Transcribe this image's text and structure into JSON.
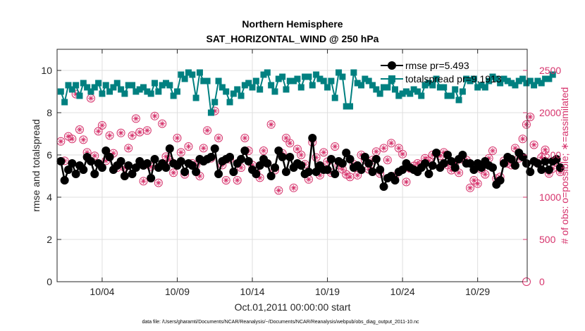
{
  "chart_data": {
    "type": "line",
    "title": "Northern Hemisphere",
    "subtitle": "SAT_HORIZONTAL_WIND @ 250 hPa",
    "xlabel": "Oct.01,2011 00:00:00 start",
    "ylabel_left": "rmse and totalspread",
    "ylabel_right": "# of obs: o=possible; ∗=assimilated",
    "footer": "data file: /Users/gharamti/Documents/NCAR/Reanalysis/~/Documents/NCAR/Reanalysis/webpub/obs_diag_output_2011-10.nc",
    "xlim": [
      1.0,
      32.3
    ],
    "x_ticks": [
      {
        "x": 4,
        "label": "10/04"
      },
      {
        "x": 9,
        "label": "10/09"
      },
      {
        "x": 14,
        "label": "10/14"
      },
      {
        "x": 19,
        "label": "10/19"
      },
      {
        "x": 24,
        "label": "10/24"
      },
      {
        "x": 29,
        "label": "10/29"
      }
    ],
    "ylim_left": [
      0,
      11
    ],
    "yticks_left": [
      0,
      2,
      4,
      6,
      8,
      10
    ],
    "ylim_right": [
      0,
      2750
    ],
    "yticks_right": [
      0,
      500,
      1000,
      1500,
      2000,
      2500
    ],
    "colors": {
      "rmse": "#000000",
      "totalspread": "#008080",
      "obs": "#d6336c"
    },
    "legend": {
      "position": "top-right",
      "entries": [
        "rmse pr=5.493",
        "totalspread pr=9.1913"
      ]
    },
    "series": [
      {
        "name": "rmse",
        "values": [
          5.7,
          4.8,
          5.3,
          5.6,
          5.1,
          5.5,
          5.3,
          5.9,
          5.7,
          5.1,
          5.6,
          5.4,
          6.2,
          5.9,
          5.3,
          5.5,
          5.7,
          5.0,
          5.5,
          5.1,
          5.4,
          5.7,
          5.5,
          5.6,
          4.9,
          5.8,
          5.4,
          5.6,
          5.4,
          6.3,
          5.6,
          5.5,
          5.7,
          5.2,
          5.6,
          5.5,
          5.2,
          5.8,
          5.7,
          5.8,
          5.9,
          6.3,
          5.1,
          5.7,
          5.8,
          5.9,
          5.2,
          5.6,
          5.8,
          6.2,
          5.7,
          5.3,
          5.1,
          5.5,
          5.8,
          5.6,
          5.0,
          5.4,
          6.2,
          5.9,
          5.2,
          5.9,
          5.4,
          5.6,
          5.5,
          5.1,
          5.2,
          6.8,
          5.2,
          5.5,
          5.3,
          5.3,
          5.8,
          5.1,
          5.7,
          5.6,
          6.1,
          5.8,
          5.4,
          5.5,
          5.3,
          5.9,
          5.6,
          5.2,
          5.8,
          5.3,
          4.5,
          4.9,
          5.0,
          4.8,
          5.2,
          5.3,
          5.6,
          5.4,
          5.3,
          5.2,
          5.4,
          5.6,
          5.1,
          5.5,
          6.1,
          5.4,
          5.6,
          6.0,
          5.7,
          5.4,
          5.8,
          6.0,
          5.6,
          5.6,
          5.3,
          5.6,
          5.4,
          5.7,
          5.5,
          5.4,
          4.6,
          4.8,
          5.6,
          5.9,
          5.8,
          5.5,
          6.1,
          5.9,
          5.6,
          5.2,
          5.7,
          5.6,
          5.3,
          5.7,
          5.3,
          5.7,
          5.8,
          5.4
        ]
      },
      {
        "name": "totalspread",
        "values": [
          9.0,
          8.5,
          9.3,
          9.1,
          9.3,
          8.8,
          9.4,
          9.2,
          9.0,
          9.2,
          9.4,
          8.9,
          9.3,
          9.0,
          9.2,
          9.4,
          9.1,
          8.9,
          9.3,
          9.3,
          9.0,
          9.1,
          9.2,
          9.0,
          8.9,
          9.4,
          9.0,
          9.3,
          9.4,
          9.3,
          8.8,
          9.0,
          9.8,
          9.6,
          9.9,
          9.8,
          8.7,
          9.9,
          9.5,
          9.5,
          8.0,
          8.5,
          9.5,
          9.2,
          9.0,
          8.5,
          8.9,
          9.1,
          8.8,
          9.3,
          9.4,
          9.2,
          9.5,
          9.1,
          9.8,
          9.9,
          9.3,
          9.0,
          9.6,
          9.7,
          9.1,
          9.5,
          9.5,
          9.6,
          9.2,
          9.7,
          9.7,
          9.3,
          9.8,
          9.6,
          9.5,
          9.2,
          9.5,
          8.7,
          9.9,
          9.7,
          8.3,
          8.3,
          9.9,
          9.4,
          9.3,
          9.6,
          9.5,
          9.3,
          9.1,
          8.9,
          9.2,
          9.2,
          9.5,
          9.1,
          8.8,
          8.9,
          9.0,
          8.9,
          9.1,
          9.0,
          8.8,
          9.3,
          9.4,
          9.3,
          9.6,
          9.2,
          9.2,
          8.8,
          8.8,
          9.1,
          8.6,
          9.0,
          9.6,
          9.5,
          9.6,
          9.2,
          9.3,
          9.2,
          9.5,
          9.7,
          9.6,
          9.4,
          9.6,
          9.5,
          9.4,
          9.3,
          9.5,
          9.6,
          9.4,
          9.5,
          9.3,
          9.5,
          9.4,
          9.6,
          9.6,
          9.8
        ]
      },
      {
        "name": "obs_possible_assimilated",
        "values": [
          1660,
          1430,
          1720,
          1690,
          2220,
          1800,
          1680,
          1530,
          2170,
          1490,
          1780,
          1850,
          1430,
          1730,
          1520,
          1350,
          1760,
          1350,
          1580,
          1730,
          1930,
          1770,
          1190,
          1790,
          1360,
          1960,
          1170,
          1870,
          1480,
          1440,
          1290,
          1700,
          1530,
          1270,
          1600,
          1400,
          1380,
          1250,
          1580,
          1790,
          1460,
          2020,
          1700,
          1380,
          1200,
          1450,
          1300,
          1200,
          1350,
          1700,
          1550,
          1380,
          1300,
          1230,
          1550,
          1400,
          1860,
          1320,
          1080,
          1520,
          1700,
          1640,
          1110,
          1570,
          1500,
          1390,
          1210,
          1650,
          1470,
          1260,
          1530,
          1420,
          1290,
          1600,
          1380,
          1330,
          1270,
          1240,
          1390,
          1260,
          1500,
          1440,
          1330,
          1440,
          1540,
          1280,
          1580,
          1440,
          1640,
          1250,
          1580,
          1510,
          1180,
          1340,
          1370,
          1400,
          1390,
          1460,
          1430,
          1500,
          1520,
          1490,
          1530,
          1380,
          1320,
          1410,
          1290,
          1450,
          1440,
          1110,
          1200,
          1160,
          1330,
          1270,
          1460,
          1550,
          1220,
          1240,
          1430,
          1400,
          1380,
          1580,
          1460,
          1690,
          1860,
          1950,
          1620,
          1400,
          1470,
          1560,
          1280,
          1340,
          1410,
          1300
        ]
      }
    ]
  }
}
